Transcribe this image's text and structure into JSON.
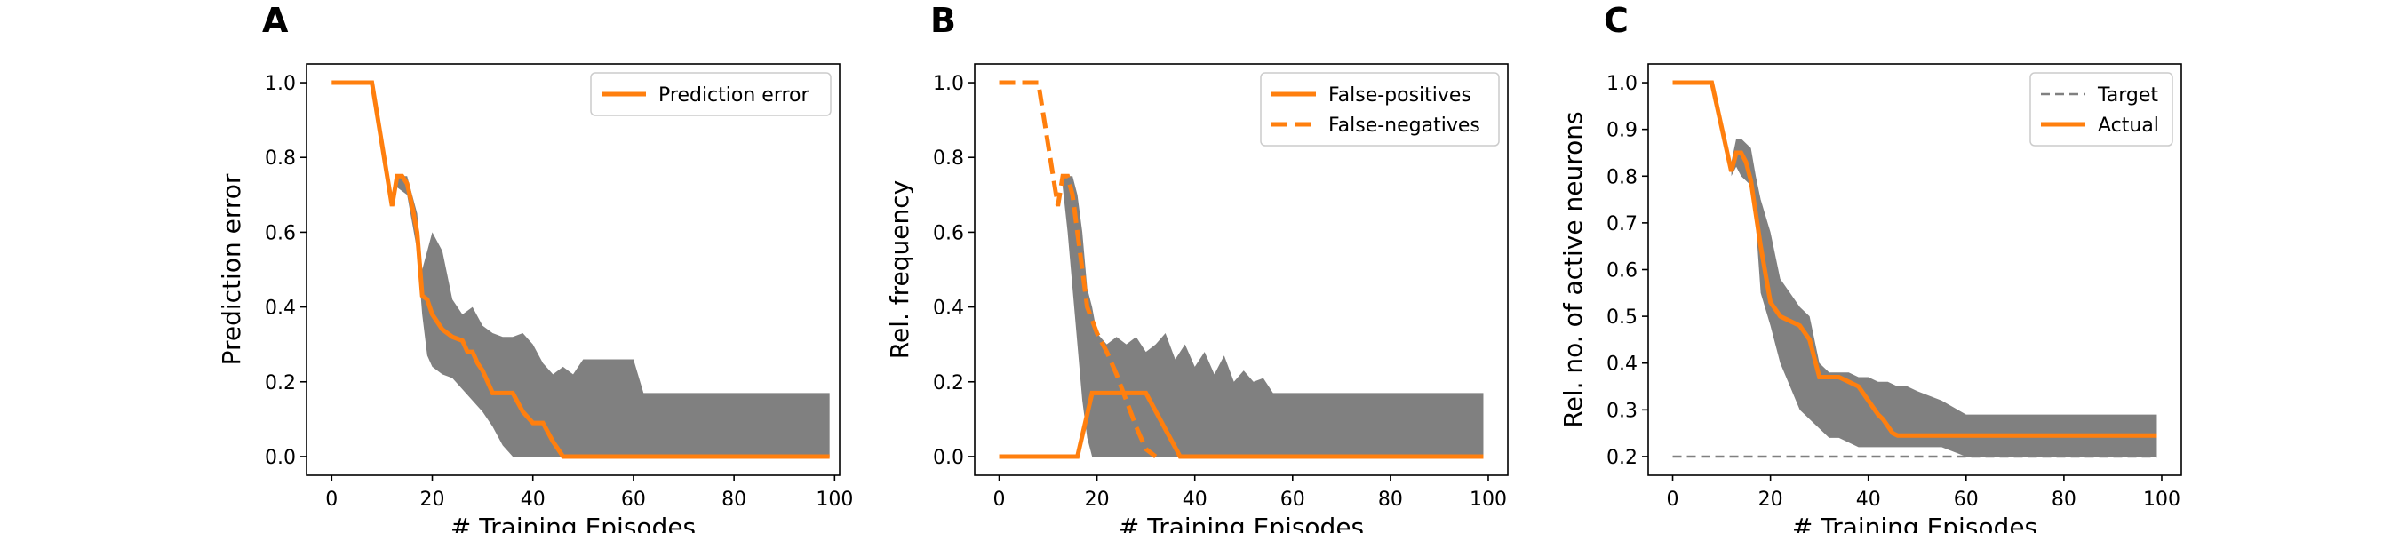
{
  "colors": {
    "line": "#ff7f0e",
    "band": "#808080",
    "target": "#808080"
  },
  "chart_data": [
    {
      "panel_label": "A",
      "type": "line",
      "xlabel": "# Training Episodes",
      "ylabel": "Prediction error",
      "xlim": [
        -5,
        101
      ],
      "ylim": [
        -0.05,
        1.05
      ],
      "xticks": [
        0,
        20,
        40,
        60,
        80,
        100
      ],
      "yticks": [
        "0.0",
        "0.2",
        "0.4",
        "0.6",
        "0.8",
        "1.0"
      ],
      "legend_position": "upper right",
      "band": {
        "x": [
          13,
          15,
          17,
          18,
          19,
          20,
          22,
          24,
          26,
          28,
          30,
          32,
          34,
          36,
          38,
          40,
          42,
          44,
          46,
          48,
          50,
          60,
          62,
          99
        ],
        "upper": [
          0.75,
          0.75,
          0.65,
          0.5,
          0.55,
          0.6,
          0.55,
          0.42,
          0.38,
          0.4,
          0.35,
          0.33,
          0.32,
          0.32,
          0.33,
          0.3,
          0.25,
          0.22,
          0.24,
          0.22,
          0.26,
          0.26,
          0.17,
          0.17
        ],
        "lower": [
          0.72,
          0.7,
          0.55,
          0.38,
          0.27,
          0.24,
          0.22,
          0.21,
          0.18,
          0.15,
          0.12,
          0.08,
          0.03,
          0.0,
          0.0,
          0.0,
          0.0,
          0.0,
          0.0,
          0.0,
          0.0,
          0.0,
          0.0,
          0.0
        ]
      },
      "series": [
        {
          "name": "Prediction error",
          "style": "solid",
          "x": [
            0,
            8,
            12,
            13,
            14,
            15,
            16,
            17,
            18,
            19,
            20,
            21,
            22,
            24,
            26,
            27,
            28,
            29,
            30,
            32,
            34,
            35,
            36,
            38,
            40,
            42,
            44,
            46,
            99
          ],
          "y": [
            1.0,
            1.0,
            0.67,
            0.75,
            0.75,
            0.73,
            0.67,
            0.6,
            0.43,
            0.42,
            0.38,
            0.36,
            0.34,
            0.32,
            0.31,
            0.28,
            0.28,
            0.25,
            0.23,
            0.17,
            0.17,
            0.17,
            0.17,
            0.12,
            0.09,
            0.09,
            0.04,
            0.0,
            0.0
          ]
        }
      ]
    },
    {
      "panel_label": "B",
      "type": "line",
      "xlabel": "# Training Episodes",
      "ylabel": "Rel. frequency",
      "xlim": [
        -5,
        104
      ],
      "ylim": [
        -0.05,
        1.05
      ],
      "xticks": [
        0,
        20,
        40,
        60,
        80,
        100
      ],
      "yticks": [
        "0.0",
        "0.2",
        "0.4",
        "0.6",
        "0.8",
        "1.0"
      ],
      "legend_position": "upper right",
      "band": {
        "x": [
          13,
          14,
          15,
          16,
          17,
          18,
          19,
          20,
          22,
          24,
          26,
          28,
          30,
          32,
          34,
          36,
          38,
          40,
          42,
          44,
          46,
          48,
          50,
          52,
          54,
          56,
          60,
          99
        ],
        "upper": [
          0.75,
          0.75,
          0.75,
          0.7,
          0.6,
          0.45,
          0.4,
          0.33,
          0.3,
          0.32,
          0.3,
          0.32,
          0.28,
          0.3,
          0.33,
          0.26,
          0.3,
          0.24,
          0.28,
          0.22,
          0.27,
          0.2,
          0.23,
          0.2,
          0.21,
          0.17,
          0.17,
          0.17
        ],
        "lower": [
          0.72,
          0.6,
          0.45,
          0.3,
          0.15,
          0.05,
          0.0,
          0.0,
          0.0,
          0.0,
          0.0,
          0.0,
          0.0,
          0.0,
          0.0,
          0.0,
          0.0,
          0.0,
          0.0,
          0.0,
          0.0,
          0.0,
          0.0,
          0.0,
          0.0,
          0.0,
          0.0,
          0.0
        ]
      },
      "series": [
        {
          "name": "False-positives",
          "style": "solid",
          "x": [
            0,
            16,
            19,
            20,
            30,
            37,
            99
          ],
          "y": [
            0.0,
            0.0,
            0.17,
            0.17,
            0.17,
            0.0,
            0.0
          ]
        },
        {
          "name": "False-negatives",
          "style": "dashed",
          "x": [
            0,
            8,
            12,
            13,
            14,
            15,
            16,
            17,
            18,
            20,
            22,
            24,
            26,
            28,
            30,
            32
          ],
          "y": [
            1.0,
            1.0,
            0.67,
            0.75,
            0.75,
            0.7,
            0.6,
            0.5,
            0.4,
            0.33,
            0.28,
            0.22,
            0.15,
            0.08,
            0.02,
            0.0
          ]
        }
      ]
    },
    {
      "panel_label": "C",
      "type": "line",
      "xlabel": "# Training Episodes",
      "ylabel": "Rel. no. of active neurons",
      "xlim": [
        -5,
        104
      ],
      "ylim": [
        0.16,
        1.04
      ],
      "xticks": [
        0,
        20,
        40,
        60,
        80,
        100
      ],
      "yticks": [
        "0.2",
        "0.3",
        "0.4",
        "0.5",
        "0.6",
        "0.7",
        "0.8",
        "0.9",
        "1.0"
      ],
      "legend_position": "upper right",
      "band": {
        "x": [
          12,
          13,
          14,
          16,
          17,
          18,
          20,
          22,
          24,
          26,
          28,
          30,
          32,
          34,
          36,
          38,
          40,
          42,
          44,
          46,
          48,
          50,
          55,
          60,
          62,
          99
        ],
        "upper": [
          0.83,
          0.88,
          0.88,
          0.86,
          0.8,
          0.75,
          0.68,
          0.58,
          0.55,
          0.52,
          0.5,
          0.4,
          0.38,
          0.38,
          0.38,
          0.37,
          0.37,
          0.36,
          0.36,
          0.35,
          0.35,
          0.34,
          0.32,
          0.29,
          0.29,
          0.29
        ],
        "lower": [
          0.8,
          0.82,
          0.8,
          0.78,
          0.7,
          0.55,
          0.48,
          0.4,
          0.35,
          0.3,
          0.28,
          0.26,
          0.24,
          0.24,
          0.23,
          0.22,
          0.22,
          0.22,
          0.22,
          0.22,
          0.22,
          0.22,
          0.22,
          0.2,
          0.2,
          0.2
        ]
      },
      "series": [
        {
          "name": "Target",
          "style": "dashed-thin",
          "x": [
            0,
            99
          ],
          "y": [
            0.2,
            0.2
          ]
        },
        {
          "name": "Actual",
          "style": "solid",
          "x": [
            0,
            8,
            12,
            13,
            14,
            15,
            16,
            17,
            18,
            19,
            20,
            22,
            24,
            26,
            28,
            30,
            32,
            34,
            36,
            38,
            40,
            42,
            43,
            45,
            46,
            99
          ],
          "y": [
            1.0,
            1.0,
            0.81,
            0.85,
            0.85,
            0.83,
            0.79,
            0.72,
            0.65,
            0.59,
            0.53,
            0.5,
            0.49,
            0.48,
            0.45,
            0.37,
            0.37,
            0.37,
            0.36,
            0.35,
            0.32,
            0.29,
            0.28,
            0.25,
            0.245,
            0.245
          ]
        }
      ]
    }
  ]
}
